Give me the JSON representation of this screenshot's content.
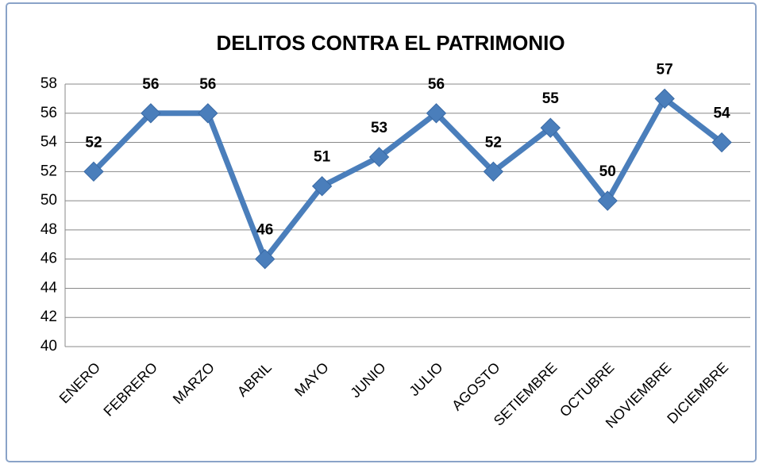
{
  "chart_data": {
    "type": "line",
    "title": "DELITOS CONTRA EL PATRIMONIO",
    "categories": [
      "ENERO",
      "FEBRERO",
      "MARZO",
      "ABRIL",
      "MAYO",
      "JUNIO",
      "JULIO",
      "AGOSTO",
      "SETIEMBRE",
      "OCTUBRE",
      "NOVIEMBRE",
      "DICIEMBRE"
    ],
    "values": [
      52,
      56,
      56,
      46,
      51,
      53,
      56,
      52,
      55,
      50,
      57,
      54
    ],
    "color": "#4a7ebb",
    "ylim": [
      40,
      58
    ],
    "yticks": [
      40,
      42,
      44,
      46,
      48,
      50,
      52,
      54,
      56,
      58
    ],
    "grid": true
  }
}
